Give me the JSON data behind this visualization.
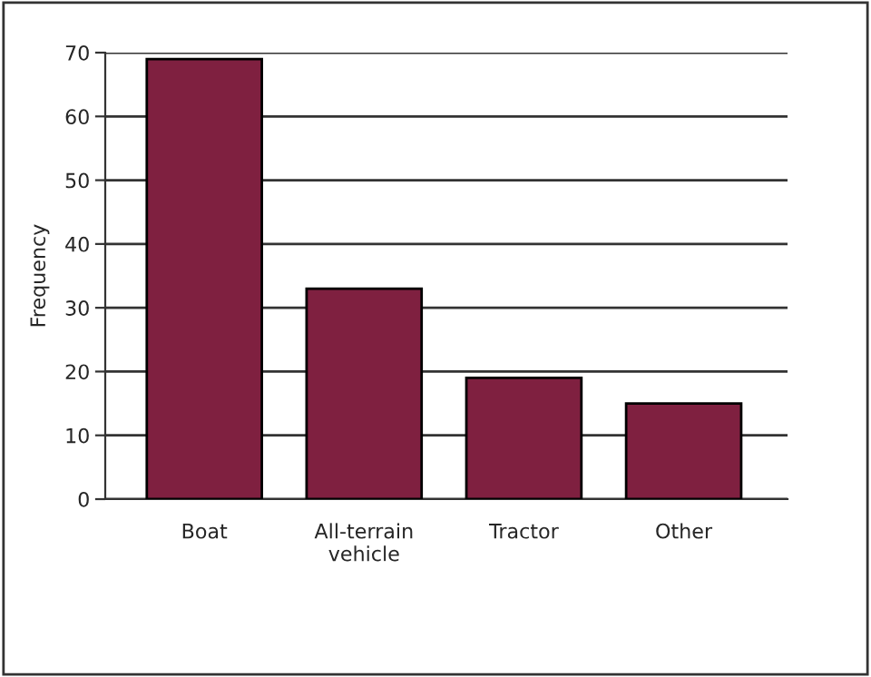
{
  "chart_data": {
    "type": "bar",
    "ylabel": "Frequency",
    "categories": [
      "Boat",
      "All-terrain\nvehicle",
      "Tractor",
      "Other"
    ],
    "values": [
      69,
      33,
      19,
      15
    ],
    "color": "#7f2040",
    "ylim": [
      0,
      70
    ],
    "yticks": [
      0,
      10,
      20,
      30,
      40,
      50,
      60,
      70
    ],
    "grid": "y"
  }
}
